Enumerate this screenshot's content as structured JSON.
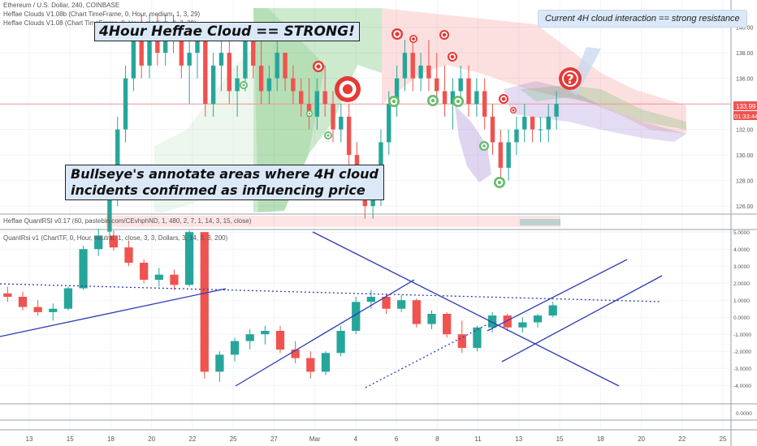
{
  "legend": {
    "symbol": "Ethereum / U.S. Dollar, 240, COINBASE",
    "cloud1": "Heffae Clouds V1.08b (Chart TimeFrame, 0, Hour, medium, 1, 3, 29)",
    "cloud2": "Heffae Clouds V1.08 (Chart TimeFrame, 0, Hour, medium, 0, 2, 29)",
    "quantrsi_lines": "Heffae QuantRSI v0.17 (60, pastebin.com/CEvhphND, 1, 480, 2, 7, 1, 14, 3, 15, close)",
    "quantrsi": "QuantRsi v1 (ChartTF, 0, Hour, neutral, 1, close, 3, 3, Dollars, 3, 14, 3, 3, 200)"
  },
  "annotations": {
    "title": "4Hour Heffae Cloud == STRONG!",
    "bullseye_line1": "Bullseye's annotate areas where 4H cloud",
    "bullseye_line2": "incidents confirmed as influencing price",
    "current": "Current 4H cloud interaction == strong resistance",
    "question": "?"
  },
  "price_badge": {
    "value": "133.99",
    "countdown": "01:33:44"
  },
  "colors": {
    "up": "#26a69a",
    "down": "#ef5350",
    "trend": "#2e3bb5",
    "price_line": "#ef9a9a",
    "cloud_green": "#4caf50",
    "cloud_red": "#ef5350",
    "cloud_purple": "#9575cd",
    "annotation_bg": "#dbe8f8",
    "target_red": "#e53935",
    "target_green": "#66bb6a"
  },
  "chart_data": {
    "type": "candlestick",
    "symbol": "ETH/USD",
    "timeframe": "240",
    "price_axis": {
      "ticks": [
        "126.00",
        "128.00",
        "130.00",
        "132.00",
        "134.00",
        "136.00",
        "138.00",
        "140.00"
      ],
      "range": [
        125.5,
        141.5
      ],
      "last": 133.99
    },
    "oscillator_axis": {
      "ticks": [
        "5.0000",
        "4.0000",
        "3.0000",
        "2.0000",
        "1.0000",
        "0.0000",
        "-1.0000",
        "-2.0000",
        "-3.0000",
        "-4.0000"
      ],
      "range": [
        -4.8,
        5.2
      ]
    },
    "x_ticks": [
      "13",
      "15",
      "18",
      "20",
      "22",
      "25",
      "27",
      "Mar",
      "4",
      "6",
      "8",
      "11",
      "13",
      "15",
      "18",
      "20",
      "22",
      "25"
    ],
    "price_candles": [
      [
        124,
        128,
        123,
        127
      ],
      [
        127,
        133,
        126,
        132
      ],
      [
        132,
        137,
        131,
        136
      ],
      [
        136,
        140,
        135,
        139
      ],
      [
        139,
        141,
        136,
        137
      ],
      [
        137,
        141,
        136,
        140
      ],
      [
        140,
        141,
        137,
        138
      ],
      [
        138,
        141,
        137,
        140
      ],
      [
        140,
        141,
        138,
        139
      ],
      [
        139,
        140,
        136,
        137
      ],
      [
        137,
        139,
        134,
        138
      ],
      [
        138,
        140,
        136,
        139
      ],
      [
        139,
        140,
        133,
        134
      ],
      [
        134,
        138,
        133,
        137
      ],
      [
        137,
        139,
        135,
        138
      ],
      [
        138,
        139,
        134,
        135
      ],
      [
        135,
        137,
        133,
        136
      ],
      [
        136,
        140,
        135,
        139
      ],
      [
        139,
        140,
        136,
        137
      ],
      [
        137,
        139,
        134,
        135
      ],
      [
        135,
        137,
        134,
        136
      ],
      [
        136,
        139,
        135,
        138
      ],
      [
        138,
        138,
        135,
        136
      ],
      [
        136,
        137,
        134,
        135
      ],
      [
        135,
        136,
        133,
        134
      ],
      [
        134,
        136,
        132,
        133
      ],
      [
        133,
        136,
        132,
        135
      ],
      [
        135,
        137,
        133,
        134
      ],
      [
        134,
        135,
        131,
        132
      ],
      [
        132,
        134,
        131,
        133
      ],
      [
        133,
        134,
        129,
        130
      ],
      [
        130,
        131,
        127,
        128
      ],
      [
        128,
        129,
        125,
        126
      ],
      [
        126,
        128,
        125,
        127
      ],
      [
        127,
        132,
        126,
        131
      ],
      [
        131,
        135,
        130,
        134
      ],
      [
        134,
        137,
        133,
        136
      ],
      [
        136,
        139,
        135,
        138
      ],
      [
        138,
        139,
        135,
        136
      ],
      [
        136,
        138,
        135,
        137
      ],
      [
        137,
        139,
        135,
        136
      ],
      [
        136,
        138,
        134,
        135
      ],
      [
        135,
        137,
        133,
        134
      ],
      [
        134,
        136,
        132,
        135
      ],
      [
        135,
        137,
        134,
        136
      ],
      [
        136,
        137,
        133,
        134
      ],
      [
        134,
        136,
        133,
        135
      ],
      [
        135,
        136,
        132,
        133
      ],
      [
        133,
        134,
        130,
        131
      ],
      [
        131,
        132,
        128,
        129
      ],
      [
        129,
        132,
        128,
        131
      ],
      [
        131,
        133,
        130,
        132
      ],
      [
        132,
        134,
        131,
        133
      ],
      [
        133,
        133,
        131,
        132
      ],
      [
        132,
        133,
        131,
        132
      ],
      [
        132,
        134,
        131,
        133
      ],
      [
        133,
        135,
        132,
        134
      ]
    ],
    "osc_candles": [
      [
        1.4,
        1.8,
        0.9,
        1.2
      ],
      [
        1.2,
        1.5,
        0.4,
        0.6
      ],
      [
        0.6,
        1.0,
        0.1,
        0.3
      ],
      [
        0.3,
        0.8,
        -0.2,
        0.5
      ],
      [
        0.5,
        1.8,
        0.4,
        1.7
      ],
      [
        1.7,
        4.2,
        1.6,
        4.0
      ],
      [
        4.0,
        5.2,
        3.6,
        4.8
      ],
      [
        4.8,
        5.1,
        3.9,
        4.1
      ],
      [
        4.1,
        4.5,
        3.0,
        3.2
      ],
      [
        3.2,
        3.4,
        2.0,
        2.2
      ],
      [
        2.2,
        2.9,
        1.8,
        2.5
      ],
      [
        2.5,
        2.8,
        1.6,
        1.9
      ],
      [
        1.9,
        5.1,
        1.8,
        5.0
      ],
      [
        5.0,
        5.0,
        -3.6,
        -3.2
      ],
      [
        -3.2,
        -2.0,
        -3.8,
        -2.2
      ],
      [
        -2.2,
        -1.2,
        -2.6,
        -1.4
      ],
      [
        -1.4,
        -0.7,
        -1.9,
        -1.0
      ],
      [
        -1.0,
        -0.5,
        -1.6,
        -0.8
      ],
      [
        -0.8,
        -0.5,
        -2.1,
        -1.9
      ],
      [
        -1.9,
        -1.4,
        -2.7,
        -2.4
      ],
      [
        -2.4,
        -2.0,
        -3.6,
        -3.2
      ],
      [
        -3.2,
        -2.0,
        -3.4,
        -2.1
      ],
      [
        -2.1,
        -0.5,
        -2.3,
        -0.8
      ],
      [
        -0.8,
        1.2,
        -1.0,
        0.9
      ],
      [
        0.9,
        1.6,
        0.5,
        1.2
      ],
      [
        1.2,
        1.4,
        0.2,
        0.5
      ],
      [
        0.5,
        1.3,
        0.3,
        1.0
      ],
      [
        1.0,
        1.1,
        -0.6,
        -0.4
      ],
      [
        -0.4,
        0.4,
        -0.7,
        0.2
      ],
      [
        0.2,
        0.3,
        -1.2,
        -1.0
      ],
      [
        -1.0,
        -0.2,
        -2.1,
        -1.8
      ],
      [
        -1.8,
        -0.5,
        -2.0,
        -0.6
      ],
      [
        -0.6,
        0.3,
        -0.9,
        0.1
      ],
      [
        0.1,
        0.2,
        -0.8,
        -0.6
      ],
      [
        -0.6,
        0.0,
        -0.9,
        -0.3
      ],
      [
        -0.3,
        0.2,
        -0.6,
        0.1
      ],
      [
        0.1,
        0.9,
        0.0,
        0.7
      ]
    ],
    "bullseyes": {
      "red": [
        [
          392,
          82,
          7
        ],
        [
          428,
          110,
          16
        ],
        [
          489,
          42,
          7
        ],
        [
          509,
          48,
          5
        ],
        [
          547,
          43,
          6
        ],
        [
          557,
          70,
          6
        ],
        [
          620,
          122,
          6
        ],
        [
          632,
          136,
          4
        ]
      ],
      "green": [
        [
          300,
          105,
          5
        ],
        [
          381,
          140,
          4
        ],
        [
          404,
          167,
          5
        ],
        [
          485,
          125,
          7
        ],
        [
          533,
          124,
          7
        ],
        [
          564,
          125,
          7
        ],
        [
          596,
          180,
          6
        ],
        [
          615,
          225,
          7
        ]
      ]
    }
  }
}
